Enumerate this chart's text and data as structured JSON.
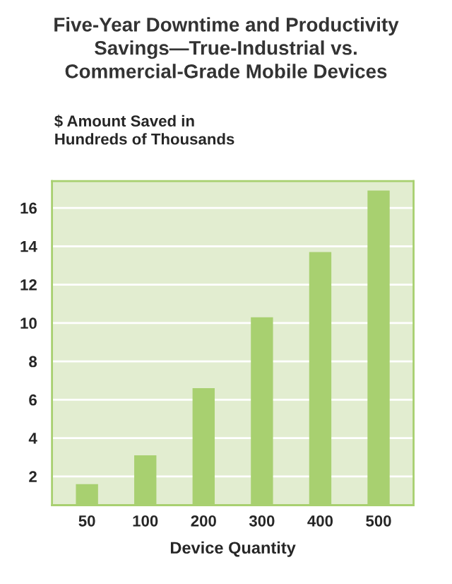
{
  "chart_data": {
    "type": "bar",
    "title": "Five-Year Downtime and Productivity\nSavings—True-Industrial vs.\nCommercial-Grade Mobile Devices",
    "ylabel": "$ Amount Saved in\nHundreds of Thousands",
    "xlabel": "Device Quantity",
    "categories": [
      "50",
      "100",
      "200",
      "300",
      "400",
      "500"
    ],
    "values": [
      1.6,
      3.1,
      6.6,
      10.3,
      13.7,
      16.9
    ],
    "color": "#a8d070",
    "ylim": [
      0.5,
      17.4
    ],
    "yticks": [
      2,
      4,
      6,
      8,
      10,
      12,
      14,
      16
    ],
    "grid": "y"
  }
}
